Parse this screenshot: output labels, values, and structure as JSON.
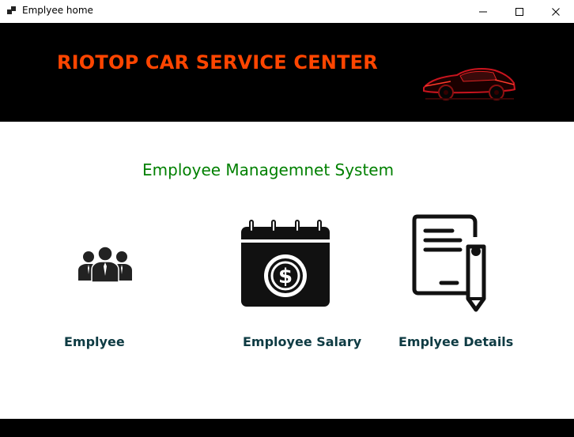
{
  "window": {
    "title": "Emplyee home"
  },
  "header": {
    "brand": "RIOTOP CAR SERVICE CENTER",
    "background_color": "#000000",
    "brand_color": "#ff4500",
    "logo_icon": "red-car-icon"
  },
  "main": {
    "system_title": "Employee Managemnet System",
    "system_title_color": "#008000",
    "tiles": [
      {
        "label": "Emplyee",
        "icon": "people-group-icon"
      },
      {
        "label": "Employee Salary",
        "icon": "salary-calendar-icon"
      },
      {
        "label": "Emplyee Details",
        "icon": "document-pen-icon"
      }
    ],
    "label_color": "#0e3b43"
  }
}
